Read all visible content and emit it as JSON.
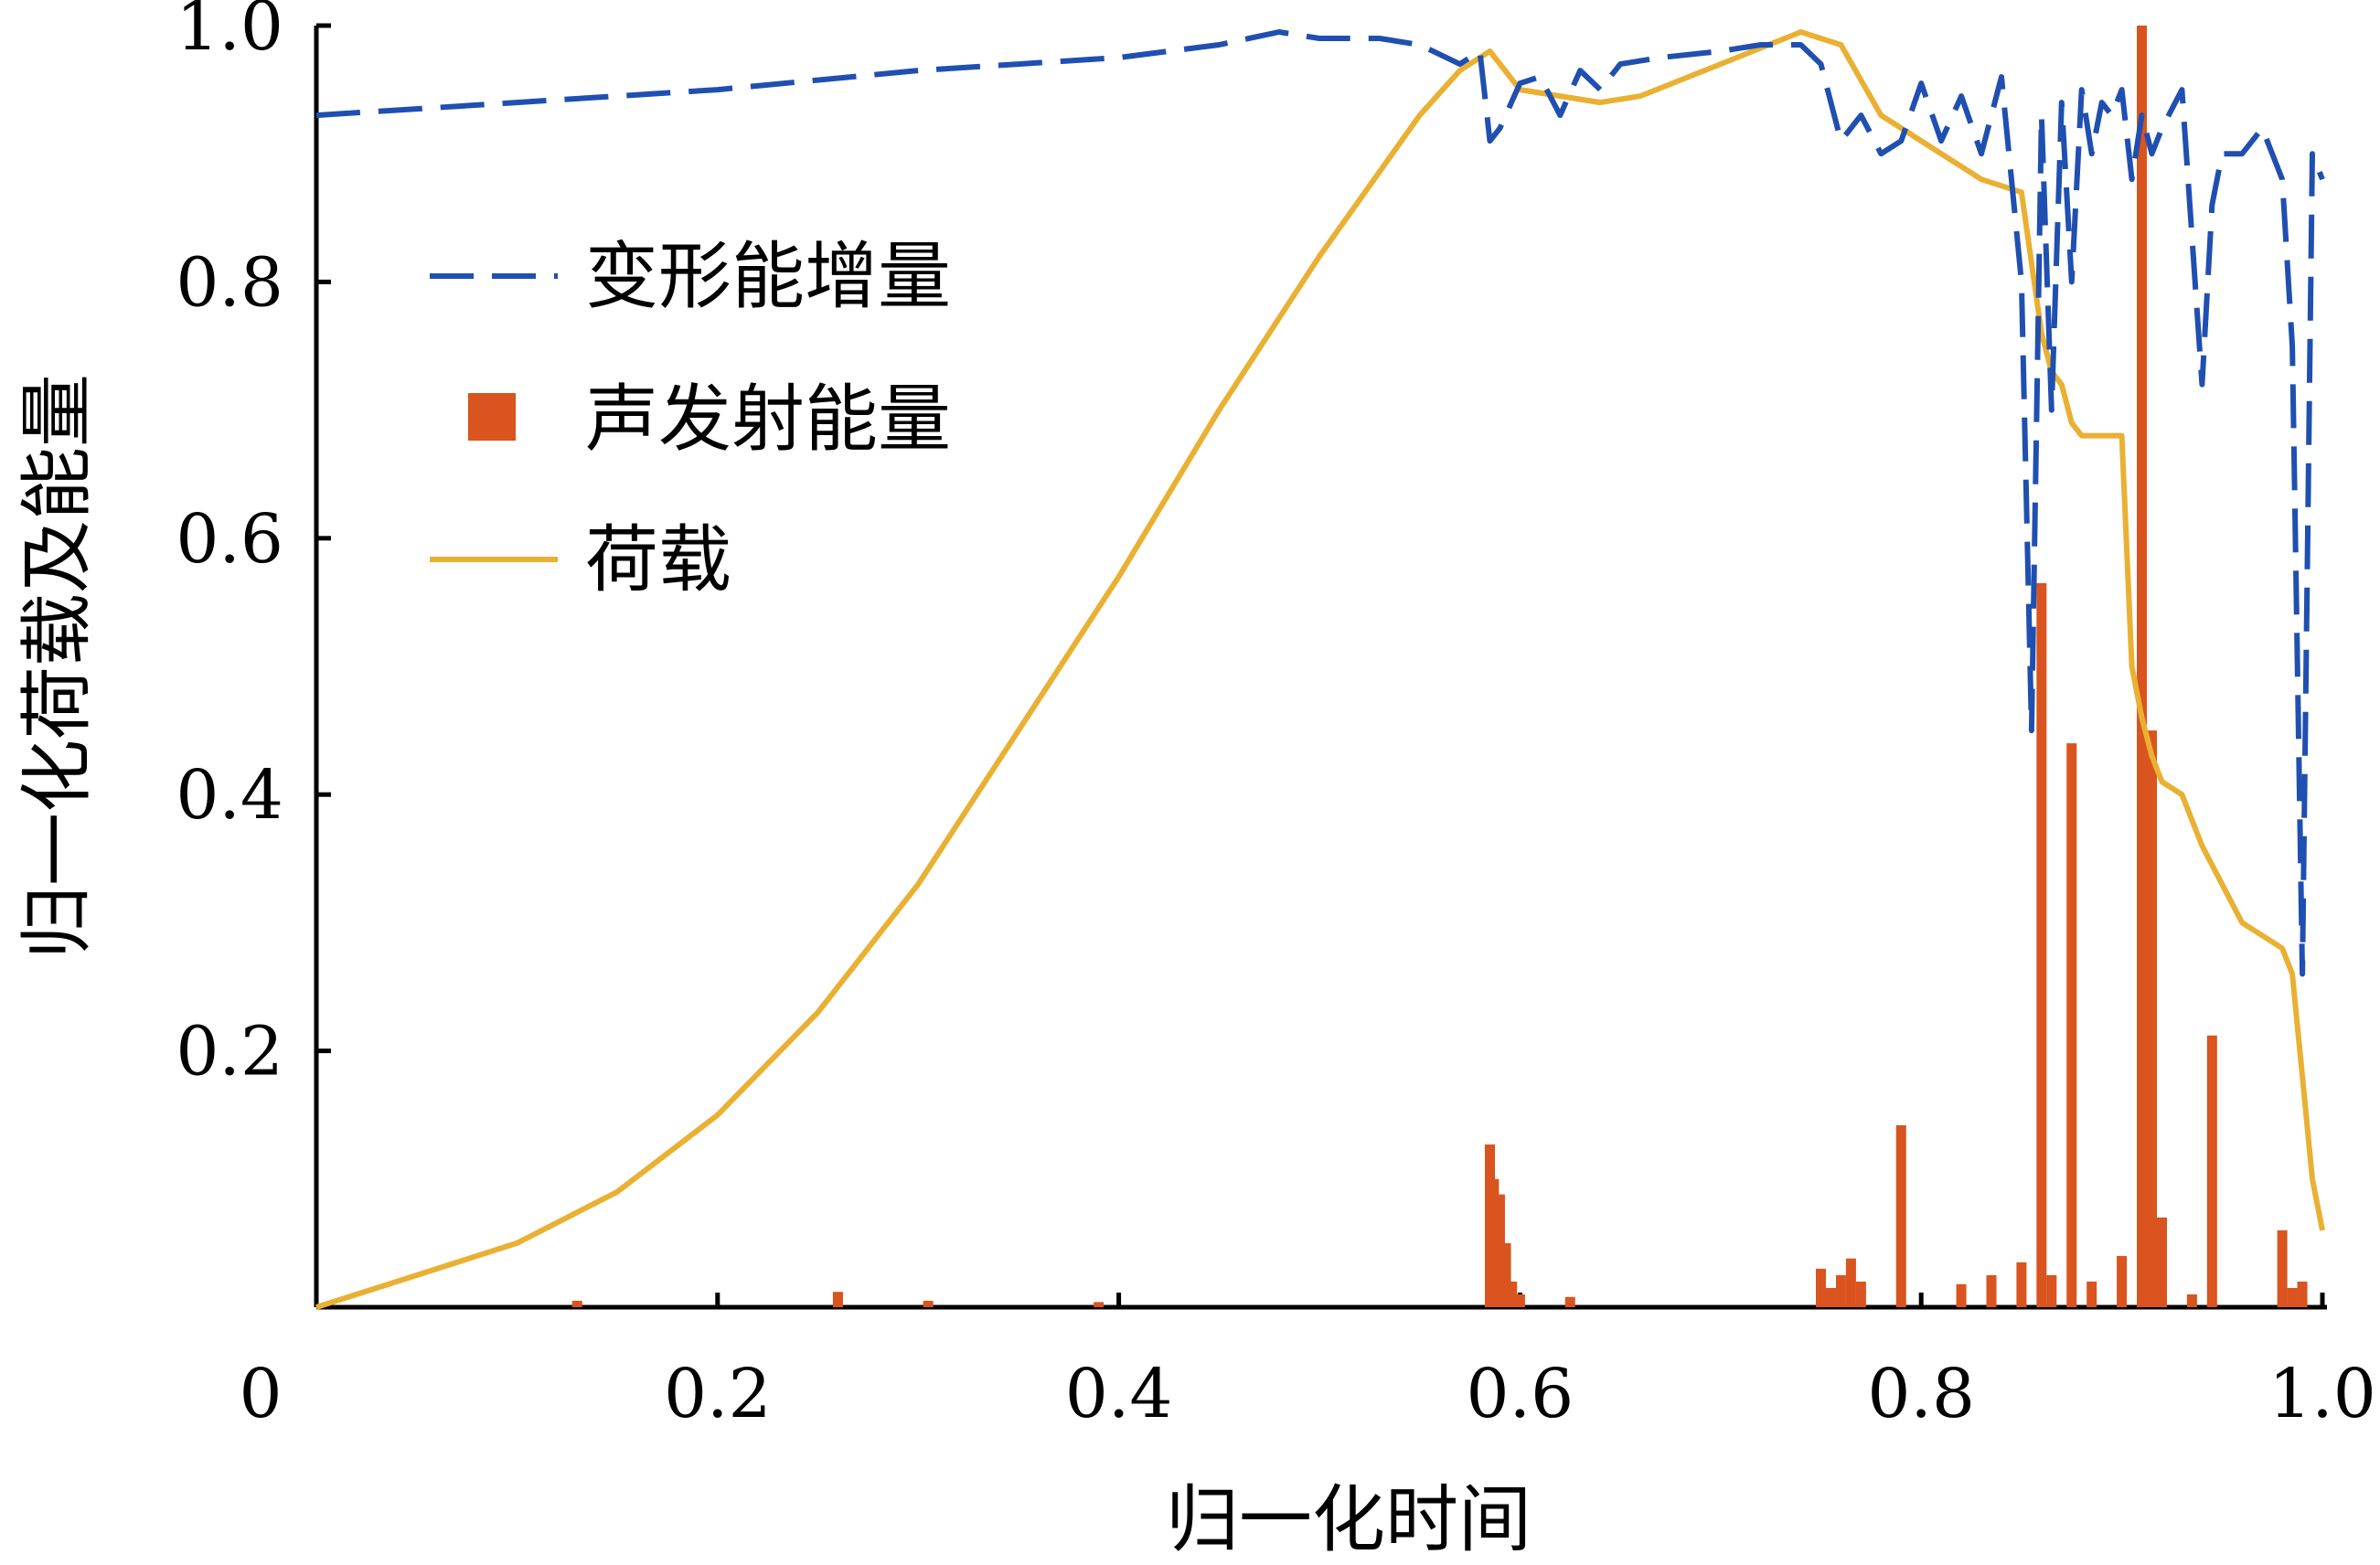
{
  "chart_data": {
    "type": "line",
    "xlabel": "归一化时间",
    "ylabel": "归一化荷载及能量",
    "xlim": [
      0,
      1.0
    ],
    "ylim": [
      0,
      1.0
    ],
    "x_ticks": [
      "0",
      "0.2",
      "0.4",
      "0.6",
      "0.8",
      "1.0"
    ],
    "y_ticks": [
      "0.2",
      "0.4",
      "0.6",
      "0.8",
      "1.0"
    ],
    "legend_position": "upper-left",
    "colors": {
      "strain_energy": "#1f4fb0",
      "ae_energy": "#d9541e",
      "load": "#e9b032"
    },
    "series": [
      {
        "name": "变形能增量",
        "style": "dashed",
        "x": [
          0,
          0.1,
          0.2,
          0.3,
          0.35,
          0.4,
          0.45,
          0.48,
          0.5,
          0.53,
          0.55,
          0.57,
          0.58,
          0.585,
          0.59,
          0.6,
          0.61,
          0.62,
          0.63,
          0.64,
          0.65,
          0.67,
          0.7,
          0.72,
          0.74,
          0.75,
          0.76,
          0.77,
          0.78,
          0.79,
          0.8,
          0.81,
          0.82,
          0.83,
          0.84,
          0.85,
          0.855,
          0.86,
          0.865,
          0.87,
          0.875,
          0.88,
          0.885,
          0.89,
          0.895,
          0.9,
          0.905,
          0.91,
          0.915,
          0.92,
          0.93,
          0.94,
          0.945,
          0.95,
          0.96,
          0.97,
          0.98,
          0.985,
          0.99,
          0.995,
          1.0
        ],
        "y": [
          0.93,
          0.94,
          0.95,
          0.965,
          0.97,
          0.975,
          0.985,
          0.995,
          0.99,
          0.99,
          0.985,
          0.97,
          0.98,
          0.91,
          0.92,
          0.955,
          0.96,
          0.93,
          0.965,
          0.95,
          0.97,
          0.975,
          0.98,
          0.985,
          0.985,
          0.97,
          0.91,
          0.93,
          0.9,
          0.91,
          0.955,
          0.91,
          0.945,
          0.9,
          0.96,
          0.8,
          0.45,
          0.93,
          0.7,
          0.94,
          0.8,
          0.95,
          0.9,
          0.94,
          0.93,
          0.95,
          0.88,
          0.93,
          0.9,
          0.92,
          0.95,
          0.72,
          0.86,
          0.9,
          0.9,
          0.92,
          0.88,
          0.75,
          0.26,
          0.9,
          0.88
        ]
      },
      {
        "name": "声发射能量",
        "style": "bars",
        "x": [
          0.13,
          0.26,
          0.305,
          0.39,
          0.585,
          0.587,
          0.59,
          0.593,
          0.596,
          0.6,
          0.625,
          0.75,
          0.755,
          0.76,
          0.765,
          0.77,
          0.79,
          0.82,
          0.835,
          0.85,
          0.86,
          0.865,
          0.875,
          0.885,
          0.9,
          0.91,
          0.915,
          0.92,
          0.935,
          0.945,
          0.98,
          0.985,
          0.99
        ],
        "values": [
          0.005,
          0.012,
          0.005,
          0.004,
          0.127,
          0.1,
          0.088,
          0.05,
          0.02,
          0.01,
          0.008,
          0.03,
          0.015,
          0.025,
          0.038,
          0.02,
          0.142,
          0.018,
          0.025,
          0.035,
          0.565,
          0.025,
          0.44,
          0.02,
          0.04,
          1.0,
          0.45,
          0.07,
          0.01,
          0.212,
          0.06,
          0.015,
          0.02
        ]
      },
      {
        "name": "荷载",
        "style": "solid",
        "x": [
          0,
          0.05,
          0.1,
          0.15,
          0.2,
          0.25,
          0.3,
          0.35,
          0.4,
          0.45,
          0.5,
          0.55,
          0.57,
          0.585,
          0.6,
          0.62,
          0.64,
          0.66,
          0.7,
          0.74,
          0.76,
          0.78,
          0.8,
          0.83,
          0.85,
          0.86,
          0.865,
          0.87,
          0.875,
          0.88,
          0.9,
          0.905,
          0.91,
          0.915,
          0.92,
          0.93,
          0.94,
          0.96,
          0.97,
          0.98,
          0.985,
          0.99,
          0.995,
          1.0
        ],
        "y": [
          0.0,
          0.025,
          0.05,
          0.09,
          0.15,
          0.23,
          0.33,
          0.45,
          0.57,
          0.7,
          0.82,
          0.93,
          0.965,
          0.98,
          0.95,
          0.945,
          0.94,
          0.945,
          0.97,
          0.995,
          0.985,
          0.93,
          0.91,
          0.88,
          0.87,
          0.76,
          0.73,
          0.72,
          0.69,
          0.68,
          0.68,
          0.5,
          0.46,
          0.43,
          0.41,
          0.4,
          0.36,
          0.3,
          0.29,
          0.28,
          0.26,
          0.18,
          0.1,
          0.06
        ]
      }
    ]
  },
  "axes": {
    "x_origin_label": "0"
  }
}
